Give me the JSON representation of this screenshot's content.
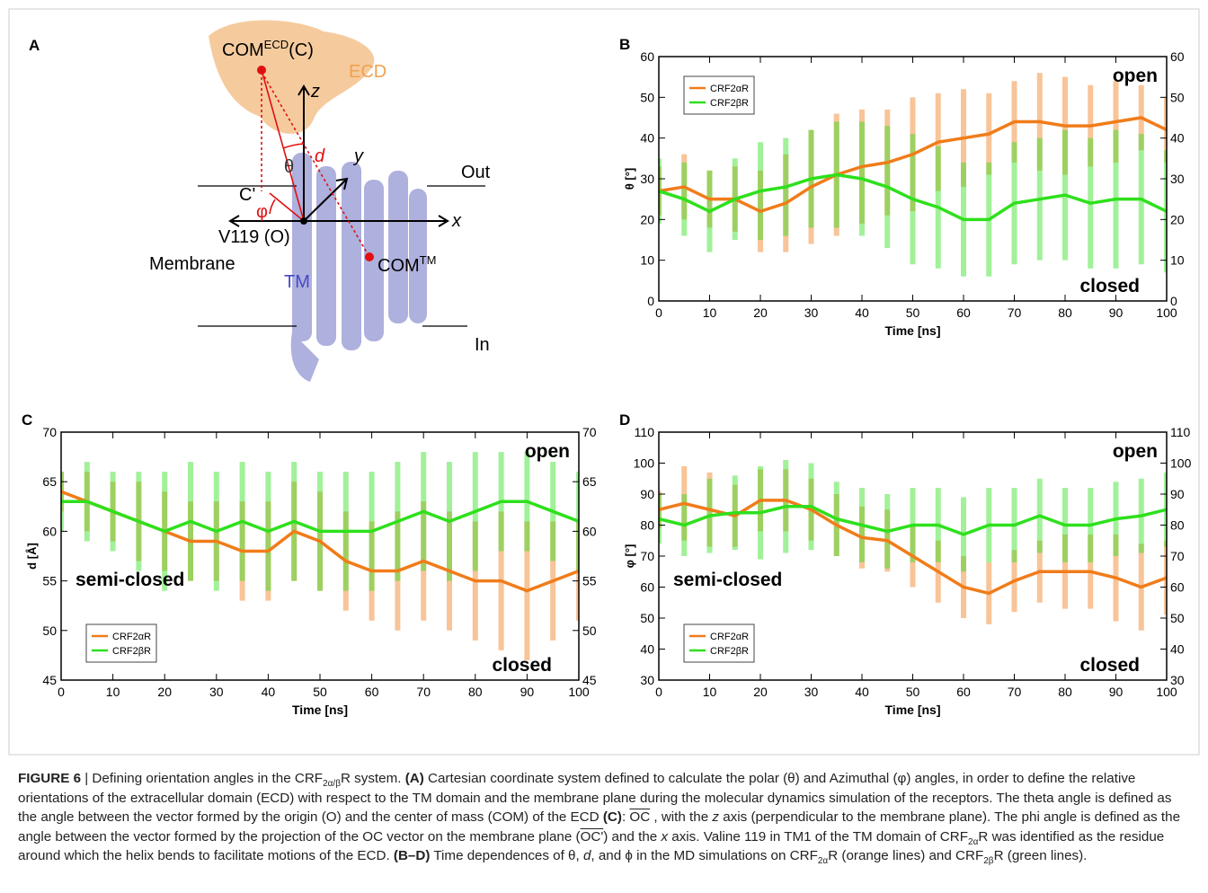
{
  "diagram": {
    "panel": "A",
    "com_ecd": {
      "base": "COM",
      "sup": "ECD",
      "tail": "(C)"
    },
    "ecd": "ECD",
    "z": "z",
    "d": "d",
    "y": "y",
    "theta": "θ",
    "out": "Out",
    "c_prime": "C'",
    "phi": "φ",
    "x": "x",
    "origin": "V119 (O)",
    "membrane": "Membrane",
    "tm": "TM",
    "com_tm": {
      "base": "COM",
      "sup": "TM"
    },
    "in": "In"
  },
  "chart_data": [
    {
      "type": "line",
      "panel": "B",
      "ylabel": "θ [°]",
      "xlabel": "Time [ns]",
      "legend": "upper left",
      "annotations": [
        "open",
        "closed"
      ],
      "x": [
        0,
        5,
        10,
        15,
        20,
        25,
        30,
        35,
        40,
        45,
        50,
        55,
        60,
        65,
        70,
        75,
        80,
        85,
        90,
        95,
        100
      ],
      "xlim": [
        0,
        100
      ],
      "xticks": [
        0,
        10,
        20,
        30,
        40,
        50,
        60,
        70,
        80,
        90,
        100
      ],
      "ylim": [
        0,
        60
      ],
      "yticks": [
        0,
        10,
        20,
        30,
        40,
        50,
        60
      ],
      "series": [
        {
          "name": "CRF2αR",
          "color": "#f07c1a",
          "values": [
            27,
            28,
            25,
            25,
            22,
            24,
            28,
            31,
            33,
            34,
            36,
            39,
            40,
            41,
            44,
            44,
            43,
            43,
            44,
            45,
            42
          ],
          "errors": [
            6,
            8,
            7,
            8,
            10,
            12,
            14,
            15,
            14,
            13,
            14,
            12,
            12,
            10,
            10,
            12,
            12,
            10,
            10,
            8,
            8
          ]
        },
        {
          "name": "CRF2βR",
          "color": "#2ee01c",
          "values": [
            27,
            25,
            22,
            25,
            27,
            28,
            30,
            31,
            30,
            28,
            25,
            23,
            20,
            20,
            24,
            25,
            26,
            24,
            25,
            25,
            22
          ],
          "errors": [
            8,
            9,
            10,
            10,
            12,
            12,
            12,
            13,
            14,
            15,
            16,
            15,
            14,
            14,
            15,
            15,
            16,
            16,
            17,
            16,
            15
          ]
        }
      ]
    },
    {
      "type": "line",
      "panel": "C",
      "ylabel": "d [Å]",
      "xlabel": "Time [ns]",
      "legend": "lower left",
      "annotations": [
        "open",
        "semi-closed",
        "closed"
      ],
      "x": [
        0,
        5,
        10,
        15,
        20,
        25,
        30,
        35,
        40,
        45,
        50,
        55,
        60,
        65,
        70,
        75,
        80,
        85,
        90,
        95,
        100
      ],
      "xlim": [
        0,
        100
      ],
      "xticks": [
        0,
        10,
        20,
        30,
        40,
        50,
        60,
        70,
        80,
        90,
        100
      ],
      "ylim": [
        45,
        70
      ],
      "yticks": [
        45,
        50,
        55,
        60,
        65,
        70
      ],
      "series": [
        {
          "name": "CRF2αR",
          "color": "#f07c1a",
          "values": [
            64,
            63,
            62,
            61,
            60,
            59,
            59,
            58,
            58,
            60,
            59,
            57,
            56,
            56,
            57,
            56,
            55,
            55,
            54,
            55,
            56
          ],
          "errors": [
            2,
            3,
            3,
            4,
            4,
            4,
            4,
            5,
            5,
            5,
            5,
            5,
            5,
            6,
            6,
            6,
            6,
            7,
            7,
            6,
            5
          ]
        },
        {
          "name": "CRF2βR",
          "color": "#2ee01c",
          "values": [
            63,
            63,
            62,
            61,
            60,
            61,
            60,
            61,
            60,
            61,
            60,
            60,
            60,
            61,
            62,
            61,
            62,
            63,
            63,
            62,
            61
          ],
          "errors": [
            3,
            4,
            4,
            5,
            6,
            6,
            6,
            6,
            6,
            6,
            6,
            6,
            6,
            6,
            6,
            6,
            6,
            5,
            5,
            5,
            5
          ]
        }
      ]
    },
    {
      "type": "line",
      "panel": "D",
      "ylabel": "φ [°]",
      "xlabel": "Time [ns]",
      "legend": "lower left",
      "annotations": [
        "open",
        "semi-closed",
        "closed"
      ],
      "x": [
        0,
        5,
        10,
        15,
        20,
        25,
        30,
        35,
        40,
        45,
        50,
        55,
        60,
        65,
        70,
        75,
        80,
        85,
        90,
        95,
        100
      ],
      "xlim": [
        0,
        100
      ],
      "xticks": [
        0,
        10,
        20,
        30,
        40,
        50,
        60,
        70,
        80,
        90,
        100
      ],
      "ylim": [
        30,
        110
      ],
      "yticks": [
        30,
        40,
        50,
        60,
        70,
        80,
        90,
        100,
        110
      ],
      "series": [
        {
          "name": "CRF2αR",
          "color": "#f07c1a",
          "values": [
            85,
            87,
            85,
            83,
            88,
            88,
            85,
            80,
            76,
            75,
            70,
            65,
            60,
            58,
            62,
            65,
            65,
            65,
            63,
            60,
            63
          ],
          "errors": [
            6,
            12,
            12,
            10,
            10,
            10,
            10,
            10,
            10,
            10,
            10,
            10,
            10,
            10,
            10,
            10,
            12,
            12,
            14,
            14,
            12
          ]
        },
        {
          "name": "CRF2βR",
          "color": "#2ee01c",
          "values": [
            82,
            80,
            83,
            84,
            84,
            86,
            86,
            82,
            80,
            78,
            80,
            80,
            77,
            80,
            80,
            83,
            80,
            80,
            82,
            83,
            85
          ],
          "errors": [
            8,
            10,
            12,
            12,
            15,
            15,
            14,
            12,
            12,
            12,
            12,
            12,
            12,
            12,
            12,
            12,
            12,
            12,
            12,
            12,
            12
          ]
        }
      ]
    }
  ],
  "caption": {
    "parts": [
      "FIGURE 6",
      " | Defining orientation angles in the CRF",
      "2α/β",
      "R system. ",
      "(A)",
      " Cartesian coordinate system defined to calculate the polar (θ) and Azimuthal (φ) angles, in order to define the relative orientations of the extracellular domain (ECD) with respect to the TM domain and the membrane plane during the molecular dynamics simulation of the receptors. The theta angle is defined as the angle between the vector formed by the origin (O) and the center of mass (COM) of the ECD ",
      "(C)",
      ": ",
      "OC",
      " , with the ",
      "z",
      " axis (perpendicular to the membrane plane). The phi angle is defined as the angle between the vector formed by the projection of the OC vector on the membrane plane (",
      "OC'",
      ") and the ",
      "x",
      " axis. Valine 119 in TM1 of the TM domain of CRF",
      "2α",
      "R was identified as the residue around which the helix bends to facilitate motions of the ECD. ",
      "(B–D)",
      " Time dependences of θ, ",
      "d",
      ", and ϕ in the MD simulations on CRF",
      "2α",
      "R (orange lines) and CRF",
      "2β",
      "R (green lines)."
    ]
  }
}
